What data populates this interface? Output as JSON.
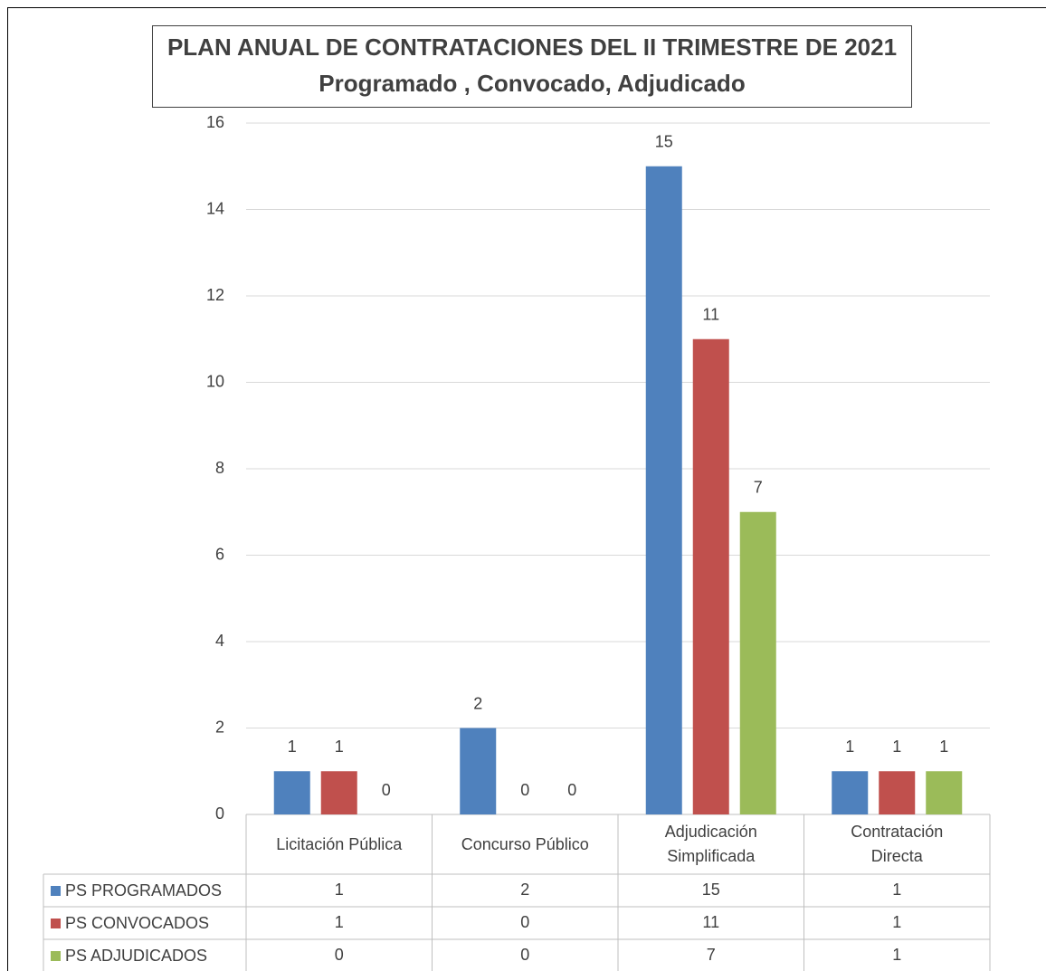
{
  "chart_data": {
    "type": "bar",
    "title": "PLAN ANUAL DE CONTRATACIONES DEL II TRIMESTRE  DE 2021",
    "subtitle": "Programado , Convocado,  Adjudicado",
    "categories": [
      "Licitación Pública",
      "Concurso Público",
      "Adjudicación Simplificada",
      "Contratación Directa"
    ],
    "series": [
      {
        "name": "PS PROGRAMADOS",
        "color": "#4f81bd",
        "values": [
          1,
          2,
          15,
          1
        ]
      },
      {
        "name": "PS CONVOCADOS",
        "color": "#c0504d",
        "values": [
          1,
          0,
          11,
          1
        ]
      },
      {
        "name": "PS ADJUDICADOS",
        "color": "#9bbb59",
        "values": [
          0,
          0,
          7,
          1
        ]
      }
    ],
    "ylim": [
      0,
      16
    ],
    "yticks": [
      0,
      2,
      4,
      6,
      8,
      10,
      12,
      14,
      16
    ],
    "grid": true,
    "data_table": true
  }
}
